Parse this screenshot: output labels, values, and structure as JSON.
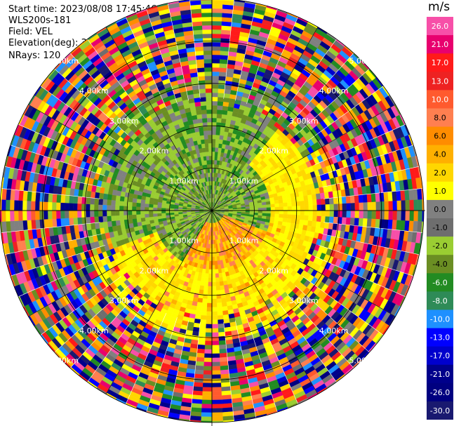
{
  "header": {
    "start_time": "Start time: 2023/08/08 17:45:46",
    "instrument": "WLS200s-181",
    "field": "Field: VEL",
    "elevation": "Elevation(deg): 35.30",
    "nrays": "NRays: 120"
  },
  "colorbar": {
    "unit": "m/s",
    "ticks": [
      "26.0",
      "21.0",
      "17.0",
      "13.0",
      "10.0",
      "8.0",
      "6.0",
      "4.0",
      "2.0",
      "1.0",
      "0.0",
      "-1.0",
      "-2.0",
      "-4.0",
      "-6.0",
      "-8.0",
      "-10.0",
      "-13.0",
      "-17.0",
      "-21.0",
      "-26.0",
      "-30.0"
    ],
    "colors": [
      "#f74fa8",
      "#e8006e",
      "#ff1a1a",
      "#ee2222",
      "#ff5a2e",
      "#ff7f50",
      "#ff8c00",
      "#ffb000",
      "#ffd700",
      "#ffff00",
      "#808080",
      "#6e6e6e",
      "#9acd32",
      "#6b8e23",
      "#228b22",
      "#2e8b57",
      "#1e90ff",
      "#0000ff",
      "#0000cd",
      "#00008b",
      "#000080",
      "#191970"
    ]
  },
  "chart_data": {
    "type": "heatmap",
    "projection": "polar PPI",
    "n_rays": 120,
    "range_rings_km": [
      1.0,
      2.0,
      3.0,
      4.0,
      5.0
    ],
    "ring_labels": [
      "1.00km",
      "2.00km",
      "3.00km",
      "4.00km",
      "5.00km"
    ],
    "max_range_km": 5.0,
    "field": "VEL",
    "units": "m/s",
    "value_range": [
      -30.0,
      26.0
    ],
    "spokes_deg": [
      0,
      30,
      60,
      90,
      120,
      150,
      180,
      210,
      240,
      270,
      300,
      330
    ]
  }
}
